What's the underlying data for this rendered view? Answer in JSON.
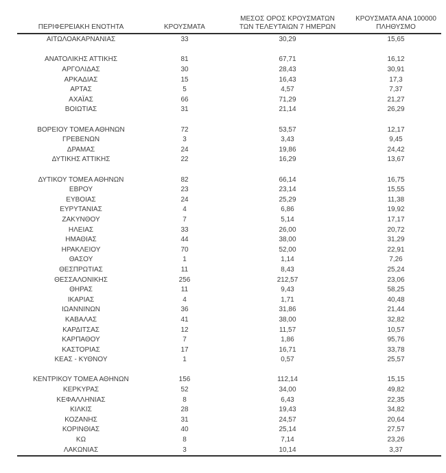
{
  "colors": {
    "background": "#ffffff",
    "text": "#3d3d3d",
    "rule_line": "#2f2f2f"
  },
  "table": {
    "columns": [
      {
        "name": "region",
        "lines": [
          "ΠΕΡΙΦΕΡΕΙΑΚΗ ΕΝΟΤΗΤΑ"
        ]
      },
      {
        "name": "cases",
        "lines": [
          "ΚΡΟΥΣΜΑΤΑ"
        ]
      },
      {
        "name": "avg7",
        "lines": [
          "ΜΕΣΟΣ ΟΡΟΣ ΚΡΟΥΣΜΑΤΩΝ",
          "ΤΩΝ ΤΕΛΕΥΤΑΙΩΝ 7 ΗΜΕΡΩΝ"
        ]
      },
      {
        "name": "per100k",
        "lines": [
          "ΚΡΟΥΣΜΑΤΑ ΑΝΑ 100000",
          "ΠΛΗΘΥΣΜΟ"
        ]
      }
    ],
    "groups": [
      {
        "rows": [
          {
            "region": "ΑΙΤΩΛΟΑΚΑΡΝΑΝΙΑΣ",
            "cases": "33",
            "avg7": "30,29",
            "per100k": "15,65"
          }
        ]
      },
      {
        "rows": [
          {
            "region": "ΑΝΑΤΟΛΙΚΗΣ ΑΤΤΙΚΗΣ",
            "cases": "81",
            "avg7": "67,71",
            "per100k": "16,12"
          },
          {
            "region": "ΑΡΓΟΛΙΔΑΣ",
            "cases": "30",
            "avg7": "28,43",
            "per100k": "30,91"
          },
          {
            "region": "ΑΡΚΑΔΙΑΣ",
            "cases": "15",
            "avg7": "16,43",
            "per100k": "17,3"
          },
          {
            "region": "ΑΡΤΑΣ",
            "cases": "5",
            "avg7": "4,57",
            "per100k": "7,37"
          },
          {
            "region": "ΑΧΑΪΑΣ",
            "cases": "66",
            "avg7": "71,29",
            "per100k": "21,27"
          },
          {
            "region": "ΒΟΙΩΤΙΑΣ",
            "cases": "31",
            "avg7": "21,14",
            "per100k": "26,29"
          }
        ]
      },
      {
        "rows": [
          {
            "region": "ΒΟΡΕΙΟΥ ΤΟΜΕΑ ΑΘΗΝΩΝ",
            "cases": "72",
            "avg7": "53,57",
            "per100k": "12,17"
          },
          {
            "region": "ΓΡΕΒΕΝΩΝ",
            "cases": "3",
            "avg7": "3,43",
            "per100k": "9,45"
          },
          {
            "region": "ΔΡΑΜΑΣ",
            "cases": "24",
            "avg7": "19,86",
            "per100k": "24,42"
          },
          {
            "region": "ΔΥΤΙΚΗΣ ΑΤΤΙΚΗΣ",
            "cases": "22",
            "avg7": "16,29",
            "per100k": "13,67"
          }
        ]
      },
      {
        "rows": [
          {
            "region": "ΔΥΤΙΚΟΥ ΤΟΜΕΑ ΑΘΗΝΩΝ",
            "cases": "82",
            "avg7": "66,14",
            "per100k": "16,75"
          },
          {
            "region": "ΕΒΡΟΥ",
            "cases": "23",
            "avg7": "23,14",
            "per100k": "15,55"
          },
          {
            "region": "ΕΥΒΟΙΑΣ",
            "cases": "24",
            "avg7": "25,29",
            "per100k": "11,38"
          },
          {
            "region": "ΕΥΡΥΤΑΝΙΑΣ",
            "cases": "4",
            "avg7": "6,86",
            "per100k": "19,92"
          },
          {
            "region": "ΖΑΚΥΝΘΟΥ",
            "cases": "7",
            "avg7": "5,14",
            "per100k": "17,17"
          },
          {
            "region": "ΗΛΕΙΑΣ",
            "cases": "33",
            "avg7": "26,00",
            "per100k": "20,72"
          },
          {
            "region": "ΗΜΑΘΙΑΣ",
            "cases": "44",
            "avg7": "38,00",
            "per100k": "31,29"
          },
          {
            "region": "ΗΡΑΚΛΕΙΟΥ",
            "cases": "70",
            "avg7": "52,00",
            "per100k": "22,91"
          },
          {
            "region": "ΘΑΣΟΥ",
            "cases": "1",
            "avg7": "1,14",
            "per100k": "7,26"
          },
          {
            "region": "ΘΕΣΠΡΩΤΙΑΣ",
            "cases": "11",
            "avg7": "8,43",
            "per100k": "25,24"
          },
          {
            "region": "ΘΕΣΣΑΛΟΝΙΚΗΣ",
            "cases": "256",
            "avg7": "212,57",
            "per100k": "23,06"
          },
          {
            "region": "ΘΗΡΑΣ",
            "cases": "11",
            "avg7": "9,43",
            "per100k": "58,25"
          },
          {
            "region": "ΙΚΑΡΙΑΣ",
            "cases": "4",
            "avg7": "1,71",
            "per100k": "40,48"
          },
          {
            "region": "ΙΩΑΝΝΙΝΩΝ",
            "cases": "36",
            "avg7": "31,86",
            "per100k": "21,44"
          },
          {
            "region": "ΚΑΒΑΛΑΣ",
            "cases": "41",
            "avg7": "38,00",
            "per100k": "32,82"
          },
          {
            "region": "ΚΑΡΔΙΤΣΑΣ",
            "cases": "12",
            "avg7": "11,57",
            "per100k": "10,57"
          },
          {
            "region": "ΚΑΡΠΑΘΟΥ",
            "cases": "7",
            "avg7": "1,86",
            "per100k": "95,76"
          },
          {
            "region": "ΚΑΣΤΟΡΙΑΣ",
            "cases": "17",
            "avg7": "16,71",
            "per100k": "33,78"
          },
          {
            "region": "ΚΕΑΣ - ΚΥΘΝΟΥ",
            "cases": "1",
            "avg7": "0,57",
            "per100k": "25,57"
          }
        ]
      },
      {
        "rows": [
          {
            "region": "ΚΕΝΤΡΙΚΟΥ ΤΟΜΕΑ ΑΘΗΝΩΝ",
            "cases": "156",
            "avg7": "112,14",
            "per100k": "15,15"
          },
          {
            "region": "ΚΕΡΚΥΡΑΣ",
            "cases": "52",
            "avg7": "34,00",
            "per100k": "49,82"
          },
          {
            "region": "ΚΕΦΑΛΛΗΝΙΑΣ",
            "cases": "8",
            "avg7": "6,43",
            "per100k": "22,35"
          },
          {
            "region": "ΚΙΛΚΙΣ",
            "cases": "28",
            "avg7": "19,43",
            "per100k": "34,82"
          },
          {
            "region": "ΚΟΖΑΝΗΣ",
            "cases": "31",
            "avg7": "24,57",
            "per100k": "20,64"
          },
          {
            "region": "ΚΟΡΙΝΘΙΑΣ",
            "cases": "40",
            "avg7": "25,14",
            "per100k": "27,57"
          },
          {
            "region": "ΚΩ",
            "cases": "8",
            "avg7": "7,14",
            "per100k": "23,26"
          },
          {
            "region": "ΛΑΚΩΝΙΑΣ",
            "cases": "3",
            "avg7": "10,14",
            "per100k": "3,37"
          }
        ]
      }
    ]
  }
}
